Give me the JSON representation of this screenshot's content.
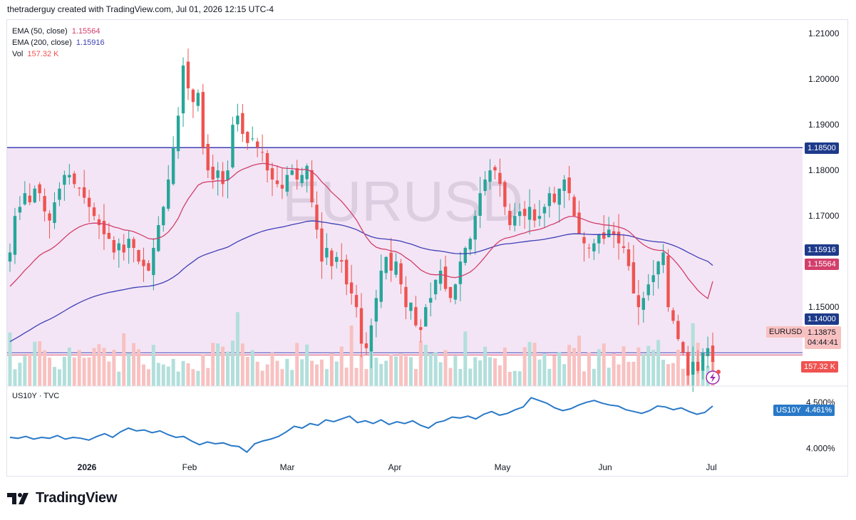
{
  "header": {
    "text": "thetraderguy created with TradingView.com, Jul 01, 2026 12:15 UTC-4"
  },
  "watermark": "EURUSD",
  "legend": {
    "ema50_label": "EMA (50, close)",
    "ema50_value": "1.15564",
    "ema200_label": "EMA (200, close)",
    "ema200_value": "1.15916",
    "vol_label": "Vol",
    "vol_value": "157.32 K"
  },
  "sub_legend": "US10Y · TVC",
  "brand": "TradingView",
  "price_tags": {
    "resistance": "1.18500",
    "ema200": "1.15916",
    "ema50": "1.15564",
    "support": "1.14000",
    "symbol": "EURUSD",
    "last": "1.13875",
    "countdown": "04:44:41",
    "volume": "157.32 K",
    "us10y_symbol": "US10Y",
    "us10y_value": "4.461%"
  },
  "colors": {
    "up": "#26a69a",
    "down": "#ef5350",
    "ema50": "#d23f6b",
    "ema200": "#3f3fb7",
    "zone": "#f3e5f5",
    "zone_line": "#3f3fb7",
    "yield_line": "#2979c8"
  },
  "chart_data": [
    {
      "type": "candlestick",
      "symbol": "EURUSD",
      "x_tick_labels": [
        "2026",
        "Feb",
        "Mar",
        "Apr",
        "May",
        "Jun",
        "Jul"
      ],
      "y_tick_labels": [
        "1.21000",
        "1.20000",
        "1.19000",
        "1.18000",
        "1.17000",
        "1.15000"
      ],
      "ylim": [
        1.133,
        1.213
      ],
      "horizontal_zone": {
        "top": 1.185,
        "bottom": 1.14
      },
      "close_series": [
        1.162,
        1.17,
        1.172,
        1.175,
        1.173,
        1.176,
        1.175,
        1.171,
        1.169,
        1.173,
        1.176,
        1.179,
        1.179,
        1.177,
        1.176,
        1.174,
        1.172,
        1.17,
        1.168,
        1.166,
        1.165,
        1.162,
        1.164,
        1.162,
        1.165,
        1.163,
        1.16,
        1.159,
        1.158,
        1.163,
        1.168,
        1.172,
        1.178,
        1.185,
        1.192,
        1.203,
        1.198,
        1.195,
        1.197,
        1.185,
        1.18,
        1.178,
        1.18,
        1.177,
        1.18,
        1.19,
        1.192,
        1.188,
        1.186,
        1.187,
        1.185,
        1.184,
        1.18,
        1.178,
        1.177,
        1.176,
        1.179,
        1.18,
        1.178,
        1.179,
        1.181,
        1.173,
        1.167,
        1.16,
        1.163,
        1.159,
        1.161,
        1.16,
        1.155,
        1.153,
        1.15,
        1.142,
        1.141,
        1.146,
        1.152,
        1.158,
        1.161,
        1.158,
        1.16,
        1.155,
        1.15,
        1.151,
        1.146,
        1.145,
        1.15,
        1.152,
        1.156,
        1.158,
        1.154,
        1.152,
        1.155,
        1.16,
        1.163,
        1.165,
        1.17,
        1.175,
        1.178,
        1.18,
        1.18,
        1.177,
        1.172,
        1.168,
        1.17,
        1.171,
        1.17,
        1.172,
        1.169,
        1.17,
        1.172,
        1.175,
        1.173,
        1.176,
        1.178,
        1.175,
        1.17,
        1.166,
        1.164,
        1.163,
        1.164,
        1.166,
        1.165,
        1.167,
        1.166,
        1.164,
        1.163,
        1.159,
        1.153,
        1.15,
        1.152,
        1.155,
        1.157,
        1.16,
        1.162,
        1.15,
        1.147,
        1.143,
        1.14,
        1.135,
        1.138,
        1.136,
        1.14,
        1.141,
        1.138
      ],
      "volume_scale": "relative",
      "ema_50": {
        "name": "EMA (50, close)",
        "last": 1.15564
      },
      "ema_200": {
        "name": "EMA (200, close)",
        "last": 1.15916
      }
    },
    {
      "type": "line",
      "symbol": "US10Y",
      "y_tick_labels": [
        "4.500%",
        "4.000%"
      ],
      "ylim": [
        3.88,
        4.63
      ],
      "series": [
        {
          "name": "US10Y",
          "values": [
            4.12,
            4.11,
            4.13,
            4.1,
            4.12,
            4.11,
            4.14,
            4.1,
            4.12,
            4.11,
            4.09,
            4.13,
            4.16,
            4.12,
            4.18,
            4.22,
            4.19,
            4.2,
            4.17,
            4.19,
            4.15,
            4.12,
            4.13,
            4.08,
            4.04,
            4.07,
            4.05,
            4.06,
            4.03,
            4.02,
            3.96,
            4.05,
            4.08,
            4.1,
            4.13,
            4.18,
            4.24,
            4.22,
            4.27,
            4.25,
            4.31,
            4.29,
            4.32,
            4.35,
            4.28,
            4.3,
            4.27,
            4.31,
            4.26,
            4.29,
            4.27,
            4.3,
            4.25,
            4.22,
            4.28,
            4.3,
            4.34,
            4.33,
            4.35,
            4.32,
            4.37,
            4.4,
            4.36,
            4.38,
            4.42,
            4.45,
            4.55,
            4.52,
            4.49,
            4.44,
            4.41,
            4.43,
            4.47,
            4.5,
            4.52,
            4.49,
            4.47,
            4.46,
            4.42,
            4.4,
            4.38,
            4.41,
            4.46,
            4.45,
            4.42,
            4.44,
            4.4,
            4.37,
            4.39,
            4.46
          ]
        }
      ]
    }
  ]
}
